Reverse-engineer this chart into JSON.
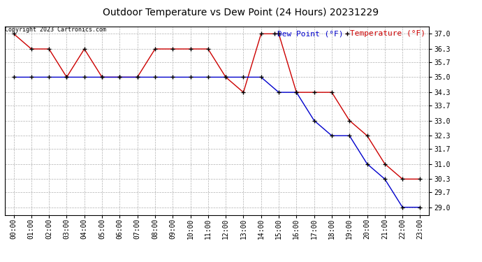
{
  "title": "Outdoor Temperature vs Dew Point (24 Hours) 20231229",
  "copyright_text": "Copyright 2023 Cartronics.com",
  "legend_dew": "Dew Point (°F)",
  "legend_temp": "Temperature (°F)",
  "x_labels": [
    "00:00",
    "01:00",
    "02:00",
    "03:00",
    "04:00",
    "05:00",
    "06:00",
    "07:00",
    "08:00",
    "09:00",
    "10:00",
    "11:00",
    "12:00",
    "13:00",
    "14:00",
    "15:00",
    "16:00",
    "17:00",
    "18:00",
    "19:00",
    "20:00",
    "21:00",
    "22:00",
    "23:00"
  ],
  "temperature_x": [
    0,
    1,
    2,
    3,
    4,
    5,
    6,
    7,
    8,
    9,
    10,
    11,
    12,
    13,
    14,
    15,
    16,
    17,
    18,
    19,
    20,
    21,
    22,
    23
  ],
  "temperature_y": [
    37.0,
    36.3,
    36.3,
    35.0,
    36.3,
    35.0,
    35.0,
    35.0,
    36.3,
    36.3,
    36.3,
    36.3,
    35.0,
    34.3,
    37.0,
    37.0,
    34.3,
    34.3,
    34.3,
    33.0,
    32.3,
    31.0,
    30.3,
    30.3
  ],
  "dewpoint_x": [
    0,
    1,
    2,
    3,
    4,
    5,
    6,
    7,
    8,
    9,
    10,
    11,
    12,
    13,
    14,
    15,
    16,
    17,
    18,
    19,
    20,
    21,
    22,
    23
  ],
  "dewpoint_y": [
    35.0,
    35.0,
    35.0,
    35.0,
    35.0,
    35.0,
    35.0,
    35.0,
    35.0,
    35.0,
    35.0,
    35.0,
    35.0,
    35.0,
    35.0,
    34.3,
    34.3,
    33.0,
    32.3,
    32.3,
    31.0,
    30.3,
    29.0,
    29.0
  ],
  "ylim_min": 28.65,
  "ylim_max": 37.35,
  "yticks": [
    29.0,
    29.7,
    30.3,
    31.0,
    31.7,
    32.3,
    33.0,
    33.7,
    34.3,
    35.0,
    35.7,
    36.3,
    37.0
  ],
  "temp_color": "#cc0000",
  "dew_color": "#0000cc",
  "background_color": "#ffffff",
  "grid_color": "#b0b0b0",
  "title_fontsize": 10,
  "axis_fontsize": 7,
  "legend_fontsize": 8,
  "copyright_fontsize": 6
}
